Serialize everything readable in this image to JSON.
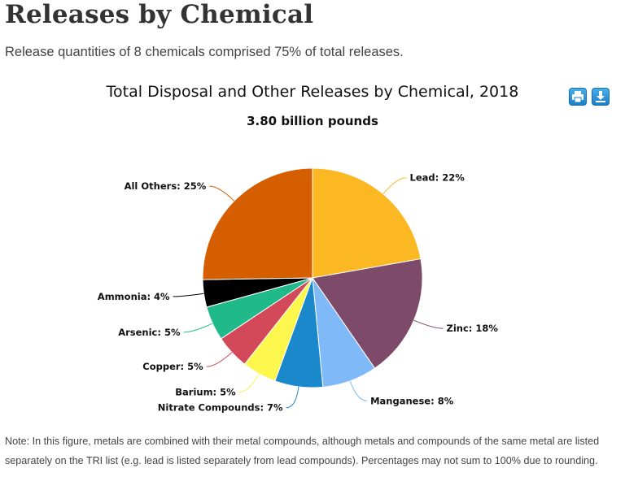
{
  "page": {
    "heading": "Releases by Chemical",
    "subtitle": "Release quantities of 8 chemicals comprised 75% of total releases.",
    "note": "Note: In this figure, metals are combined with their metal compounds, although metals and compounds of the same metal are listed separately on the TRI list (e.g. lead is listed separately from lead compounds). Percentages may not sum to 100% due to rounding."
  },
  "toolbar": {
    "print_icon": "printer-icon",
    "download_icon": "download-icon",
    "color": "#2a8fd6"
  },
  "chart_data": {
    "type": "pie",
    "title": "Total Disposal and Other Releases by Chemical, 2018",
    "subtitle": "3.80 billion pounds",
    "slices": [
      {
        "name": "Lead",
        "value": 22,
        "label": "Lead: 22%",
        "color": "#fbb822"
      },
      {
        "name": "Zinc",
        "value": 18,
        "label": "Zinc: 18%",
        "color": "#7e4a69"
      },
      {
        "name": "Manganese",
        "value": 8,
        "label": "Manganese: 8%",
        "color": "#80b9f8"
      },
      {
        "name": "Nitrate Compounds",
        "value": 7,
        "label": "Nitrate Compounds: 7%",
        "color": "#1b88cb"
      },
      {
        "name": "Barium",
        "value": 5,
        "label": "Barium: 5%",
        "color": "#fcf64d"
      },
      {
        "name": "Copper",
        "value": 5,
        "label": "Copper: 5%",
        "color": "#d3495a"
      },
      {
        "name": "Arsenic",
        "value": 5,
        "label": "Arsenic: 5%",
        "color": "#1fb98a"
      },
      {
        "name": "Ammonia",
        "value": 4,
        "label": "Ammonia: 4%",
        "color": "#000000"
      },
      {
        "name": "All Others",
        "value": 25,
        "label": "All Others: 25%",
        "color": "#d45e00"
      }
    ]
  }
}
